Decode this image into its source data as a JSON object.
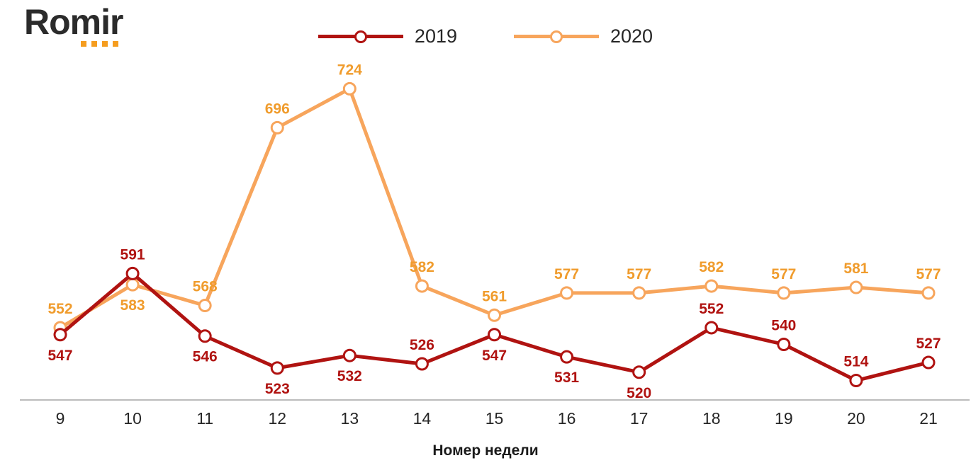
{
  "logo": {
    "text": "Romir"
  },
  "legend": [
    {
      "label": "2019"
    },
    {
      "label": "2020"
    }
  ],
  "axis": {
    "title": "Номер недели"
  },
  "chart_data": {
    "type": "line",
    "x": [
      9,
      10,
      11,
      12,
      13,
      14,
      15,
      16,
      17,
      18,
      19,
      20,
      21
    ],
    "xlabel": "Номер недели",
    "ylim": [
      500,
      740
    ],
    "grid": false,
    "legend_position": "top",
    "series": [
      {
        "name": "2020",
        "color": "#F7A55C",
        "label_color": "#F09C2D",
        "values": [
          552,
          583,
          568,
          696,
          724,
          582,
          561,
          577,
          577,
          582,
          577,
          581,
          577
        ],
        "label_positions": [
          "above",
          "below",
          "above",
          "above",
          "above",
          "above",
          "above",
          "above",
          "above",
          "above",
          "above",
          "above",
          "above"
        ]
      },
      {
        "name": "2019",
        "color": "#B01311",
        "label_color": "#B01311",
        "values": [
          547,
          591,
          546,
          523,
          532,
          526,
          547,
          531,
          520,
          552,
          540,
          514,
          527
        ],
        "label_positions": [
          "below",
          "above",
          "below",
          "below",
          "below",
          "above",
          "below",
          "below",
          "below",
          "above",
          "above",
          "above",
          "above"
        ]
      }
    ]
  }
}
